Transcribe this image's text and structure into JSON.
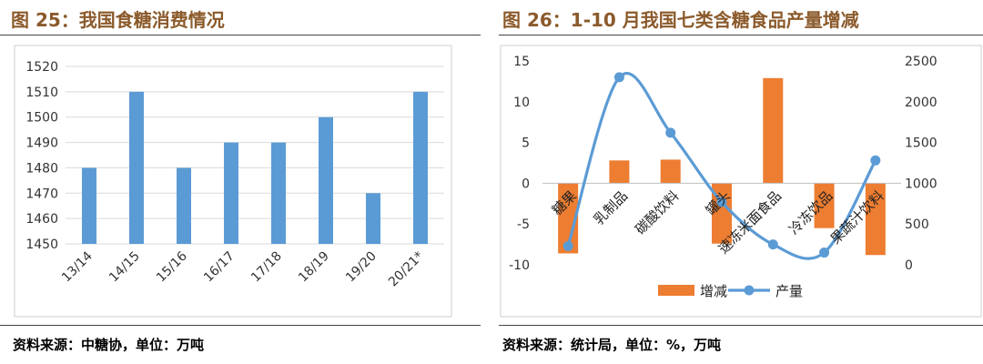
{
  "left_title": "图 25：我国食糖消费情况",
  "right_title": "图 26：1-10 月我国七类含糖食品产量增减",
  "left_source": "资料来源：中糖协，单位：万吨",
  "right_source": "资料来源：统计局，单位：%，万吨",
  "colors": {
    "bar_left": "#5B9BD5",
    "bar_right": "#ED7D31",
    "line_right": "#5B9BD5",
    "title": "#8B5A2B"
  },
  "chart_data": [
    {
      "type": "bar",
      "categories": [
        "13/14",
        "14/15",
        "15/16",
        "16/17",
        "17/18",
        "18/19",
        "19/20",
        "20/21*"
      ],
      "values": [
        1480,
        1510,
        1480,
        1490,
        1490,
        1500,
        1470,
        1510
      ],
      "ylim": [
        1450,
        1520
      ],
      "yticks": [
        1450,
        1460,
        1470,
        1480,
        1490,
        1500,
        1510,
        1520
      ],
      "grid": true
    },
    {
      "type": "bar+line",
      "categories": [
        "糖果",
        "乳制品",
        "碳酸饮料",
        "罐头",
        "速冻米面食品",
        "冷冻饮品",
        "果蔬汁饮料"
      ],
      "series": [
        {
          "name": "增减",
          "type": "bar",
          "axis": "left",
          "values": [
            -8.6,
            2.8,
            2.9,
            -7.4,
            12.9,
            -5.5,
            -8.8
          ]
        },
        {
          "name": "产量",
          "type": "line",
          "axis": "right",
          "values": [
            230,
            2300,
            1620,
            770,
            250,
            150,
            1280
          ]
        }
      ],
      "ylim_left": [
        -10,
        15
      ],
      "yticks_left": [
        -10,
        -5,
        0,
        5,
        10,
        15
      ],
      "ylim_right": [
        0,
        2500
      ],
      "yticks_right": [
        0,
        500,
        1000,
        1500,
        2000,
        2500
      ],
      "legend_position": "bottom",
      "grid": false
    }
  ]
}
